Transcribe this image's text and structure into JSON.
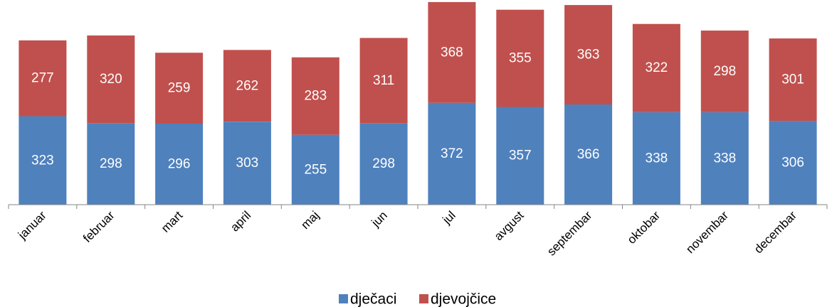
{
  "chart_data": {
    "type": "bar",
    "stacked": true,
    "categories": [
      "januar",
      "februar",
      "mart",
      "april",
      "maj",
      "jun",
      "jul",
      "avgust",
      "septembar",
      "oktobar",
      "novembar",
      "decembar"
    ],
    "series": [
      {
        "name": "dječaci",
        "color": "#4f81bd",
        "values": [
          323,
          298,
          296,
          303,
          255,
          298,
          372,
          357,
          366,
          338,
          338,
          306
        ]
      },
      {
        "name": "djevojčice",
        "color": "#c0504d",
        "values": [
          277,
          320,
          259,
          262,
          283,
          311,
          368,
          355,
          363,
          322,
          298,
          301
        ]
      }
    ],
    "ylim": [
      0,
      740
    ],
    "grid": false,
    "data_labels": true,
    "legend_position": "bottom"
  }
}
